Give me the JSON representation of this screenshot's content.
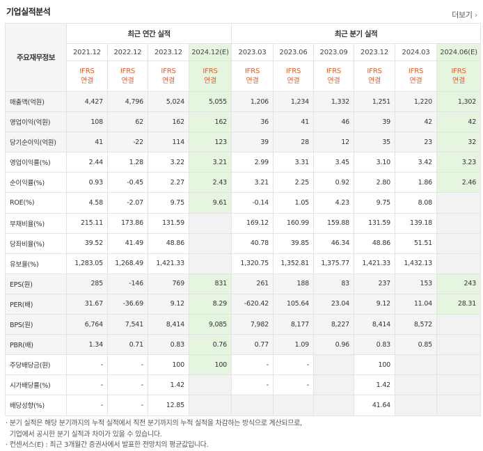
{
  "section_title": "기업실적분석",
  "more_label": "더보기",
  "header": {
    "row_label": "주요재무정보",
    "annual_group": "최근 연간 실적",
    "quarter_group": "최근 분기 실적",
    "annual_periods": [
      "2021.12",
      "2022.12",
      "2023.12",
      "2024.12(E)"
    ],
    "quarter_periods": [
      "2023.03",
      "2023.06",
      "2023.09",
      "2023.12",
      "2024.03",
      "2024.06(E)"
    ],
    "ifrs_top": "IFRS",
    "ifrs_bottom": "연결"
  },
  "rows": [
    {
      "label": "매출액(억원)",
      "values": [
        "4,427",
        "4,796",
        "5,024",
        "5,055",
        "1,206",
        "1,234",
        "1,332",
        "1,251",
        "1,220",
        "1,302"
      ]
    },
    {
      "label": "영업이익(억원)",
      "values": [
        "108",
        "62",
        "162",
        "162",
        "36",
        "41",
        "46",
        "39",
        "42",
        "42"
      ]
    },
    {
      "label": "당기순이익(억원)",
      "values": [
        "41",
        "-22",
        "114",
        "123",
        "39",
        "28",
        "12",
        "35",
        "23",
        "32"
      ]
    },
    {
      "label": "영업이익률(%)",
      "values": [
        "2.44",
        "1.28",
        "3.22",
        "3.21",
        "2.99",
        "3.31",
        "3.45",
        "3.10",
        "3.42",
        "3.23"
      ]
    },
    {
      "label": "순이익률(%)",
      "values": [
        "0.93",
        "-0.45",
        "2.27",
        "2.43",
        "3.21",
        "2.25",
        "0.92",
        "2.80",
        "1.86",
        "2.46"
      ]
    },
    {
      "label": "ROE(%)",
      "values": [
        "4.58",
        "-2.07",
        "9.75",
        "9.61",
        "-0.14",
        "1.05",
        "4.23",
        "9.75",
        "8.08",
        ""
      ]
    },
    {
      "label": "부채비율(%)",
      "values": [
        "215.11",
        "173.86",
        "131.59",
        "",
        "169.12",
        "160.99",
        "159.88",
        "131.59",
        "139.18",
        ""
      ]
    },
    {
      "label": "당좌비율(%)",
      "values": [
        "39.52",
        "41.49",
        "48.86",
        "",
        "40.78",
        "39.85",
        "46.34",
        "48.86",
        "51.51",
        ""
      ]
    },
    {
      "label": "유보율(%)",
      "values": [
        "1,283.05",
        "1,268.49",
        "1,421.33",
        "",
        "1,320.75",
        "1,352.81",
        "1,375.77",
        "1,421.33",
        "1,432.13",
        ""
      ]
    },
    {
      "label": "EPS(원)",
      "values": [
        "285",
        "-146",
        "769",
        "831",
        "261",
        "188",
        "83",
        "237",
        "153",
        "243"
      ]
    },
    {
      "label": "PER(배)",
      "values": [
        "31.67",
        "-36.69",
        "9.12",
        "8.29",
        "-620.42",
        "105.64",
        "23.04",
        "9.12",
        "11.04",
        "28.31"
      ]
    },
    {
      "label": "BPS(원)",
      "values": [
        "6,764",
        "7,541",
        "8,414",
        "9,085",
        "7,982",
        "8,177",
        "8,227",
        "8,414",
        "8,572",
        ""
      ]
    },
    {
      "label": "PBR(배)",
      "values": [
        "1.34",
        "0.71",
        "0.83",
        "0.76",
        "0.77",
        "1.09",
        "0.96",
        "0.83",
        "0.85",
        ""
      ]
    },
    {
      "label": "주당배당금(원)",
      "values": [
        "-",
        "-",
        "100",
        "100",
        "-",
        "-",
        "",
        "100",
        "",
        ""
      ]
    },
    {
      "label": "시가배당률(%)",
      "values": [
        "-",
        "-",
        "1.42",
        "",
        "-",
        "-",
        "",
        "1.42",
        "",
        ""
      ]
    },
    {
      "label": "배당성향(%)",
      "values": [
        "-",
        "-",
        "12.85",
        "",
        "",
        "",
        "",
        "41.64",
        "",
        ""
      ]
    }
  ],
  "notes": [
    "분기 실적은 해당 분기까지의 누적 실적에서 직전 분기까지의 누적 실적을 차감하는 방식으로 계산되므로,",
    "기업에서 공시한 분기 실적과 차이가 있을 수 있습니다.",
    "컨센서스(E) : 최근 3개월간 증권사에서 발표한 전망치의 평균값입니다."
  ],
  "colors": {
    "negative": "#e4002b",
    "ifrs": "#e75a25",
    "estimate_bg": "#e6f5e0",
    "estimate_mark": "#1a8a3a"
  }
}
